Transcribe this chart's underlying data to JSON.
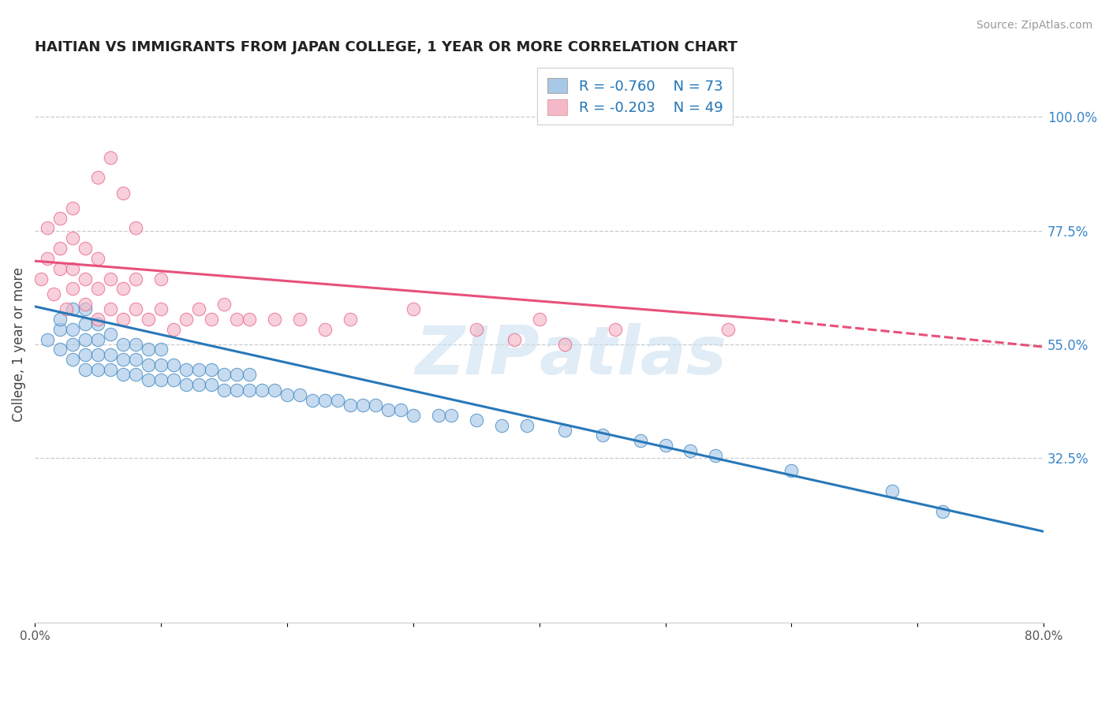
{
  "title": "HAITIAN VS IMMIGRANTS FROM JAPAN COLLEGE, 1 YEAR OR MORE CORRELATION CHART",
  "source_text": "Source: ZipAtlas.com",
  "ylabel": "College, 1 year or more",
  "xlim": [
    0.0,
    0.8
  ],
  "ylim": [
    0.0,
    1.1
  ],
  "xticks": [
    0.0,
    0.1,
    0.2,
    0.3,
    0.4,
    0.5,
    0.6,
    0.7,
    0.8
  ],
  "xticklabels": [
    "0.0%",
    "",
    "",
    "",
    "",
    "",
    "",
    "",
    "80.0%"
  ],
  "yticks_right": [
    0.325,
    0.55,
    0.775,
    1.0
  ],
  "yticklabels_right": [
    "32.5%",
    "55.0%",
    "77.5%",
    "100.0%"
  ],
  "legend_r1": "R = -0.760",
  "legend_n1": "N = 73",
  "legend_r2": "R = -0.203",
  "legend_n2": "N = 49",
  "blue_color": "#a8c8e8",
  "pink_color": "#f4b8c8",
  "blue_line_color": "#2878b8",
  "pink_line_color": "#e8507a",
  "watermark": "ZIPAtlas",
  "blue_scatter_x": [
    0.01,
    0.02,
    0.02,
    0.02,
    0.03,
    0.03,
    0.03,
    0.03,
    0.04,
    0.04,
    0.04,
    0.04,
    0.04,
    0.05,
    0.05,
    0.05,
    0.05,
    0.06,
    0.06,
    0.06,
    0.07,
    0.07,
    0.07,
    0.08,
    0.08,
    0.08,
    0.09,
    0.09,
    0.09,
    0.1,
    0.1,
    0.1,
    0.11,
    0.11,
    0.12,
    0.12,
    0.13,
    0.13,
    0.14,
    0.14,
    0.15,
    0.15,
    0.16,
    0.16,
    0.17,
    0.17,
    0.18,
    0.19,
    0.2,
    0.21,
    0.22,
    0.23,
    0.24,
    0.25,
    0.26,
    0.27,
    0.28,
    0.29,
    0.3,
    0.32,
    0.33,
    0.35,
    0.37,
    0.39,
    0.42,
    0.45,
    0.48,
    0.5,
    0.52,
    0.54,
    0.6,
    0.68,
    0.72
  ],
  "blue_scatter_y": [
    0.56,
    0.54,
    0.58,
    0.6,
    0.52,
    0.55,
    0.58,
    0.62,
    0.5,
    0.53,
    0.56,
    0.59,
    0.62,
    0.5,
    0.53,
    0.56,
    0.59,
    0.5,
    0.53,
    0.57,
    0.49,
    0.52,
    0.55,
    0.49,
    0.52,
    0.55,
    0.48,
    0.51,
    0.54,
    0.48,
    0.51,
    0.54,
    0.48,
    0.51,
    0.47,
    0.5,
    0.47,
    0.5,
    0.47,
    0.5,
    0.46,
    0.49,
    0.46,
    0.49,
    0.46,
    0.49,
    0.46,
    0.46,
    0.45,
    0.45,
    0.44,
    0.44,
    0.44,
    0.43,
    0.43,
    0.43,
    0.42,
    0.42,
    0.41,
    0.41,
    0.41,
    0.4,
    0.39,
    0.39,
    0.38,
    0.37,
    0.36,
    0.35,
    0.34,
    0.33,
    0.3,
    0.26,
    0.22
  ],
  "pink_scatter_x": [
    0.005,
    0.01,
    0.01,
    0.015,
    0.02,
    0.02,
    0.02,
    0.025,
    0.03,
    0.03,
    0.03,
    0.03,
    0.04,
    0.04,
    0.04,
    0.05,
    0.05,
    0.05,
    0.06,
    0.06,
    0.07,
    0.07,
    0.08,
    0.08,
    0.09,
    0.1,
    0.1,
    0.11,
    0.12,
    0.13,
    0.14,
    0.15,
    0.16,
    0.17,
    0.19,
    0.21,
    0.23,
    0.25,
    0.3,
    0.35,
    0.4,
    0.46,
    0.55,
    0.38,
    0.42,
    0.05,
    0.06,
    0.07,
    0.08
  ],
  "pink_scatter_y": [
    0.68,
    0.72,
    0.78,
    0.65,
    0.7,
    0.74,
    0.8,
    0.62,
    0.66,
    0.7,
    0.76,
    0.82,
    0.63,
    0.68,
    0.74,
    0.6,
    0.66,
    0.72,
    0.62,
    0.68,
    0.6,
    0.66,
    0.62,
    0.68,
    0.6,
    0.62,
    0.68,
    0.58,
    0.6,
    0.62,
    0.6,
    0.63,
    0.6,
    0.6,
    0.6,
    0.6,
    0.58,
    0.6,
    0.62,
    0.58,
    0.6,
    0.58,
    0.58,
    0.56,
    0.55,
    0.88,
    0.92,
    0.85,
    0.78
  ],
  "blue_trend_x0": 0.0,
  "blue_trend_y0": 0.625,
  "blue_trend_x1": 0.8,
  "blue_trend_y1": 0.18,
  "pink_trend_x0": 0.0,
  "pink_trend_y0": 0.715,
  "pink_trend_x1_solid": 0.58,
  "pink_trend_y1_solid": 0.6,
  "pink_trend_x1_dash": 0.8,
  "pink_trend_y1_dash": 0.545
}
